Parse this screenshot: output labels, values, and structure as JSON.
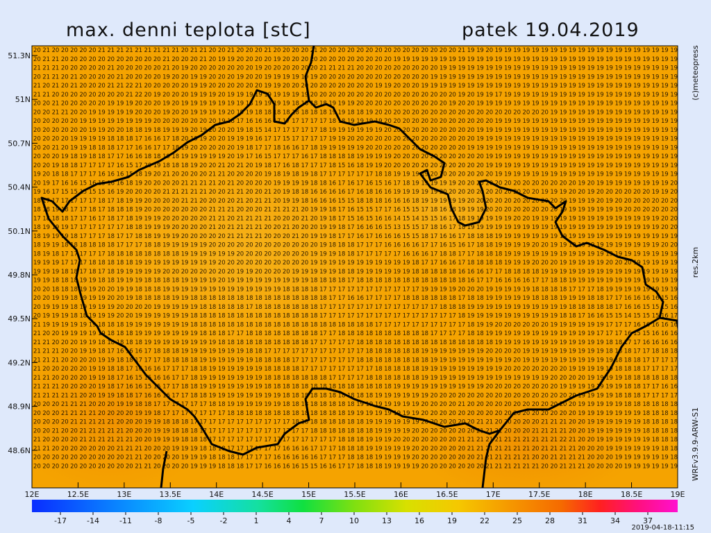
{
  "map": {
    "title": "max. denni teplota [stC]",
    "date": "patek 19.04.2019",
    "lat_labels": [
      "51.3N",
      "51N",
      "50.7N",
      "50.4N",
      "50.1N",
      "49.8N",
      "49.5N",
      "49.2N",
      "48.9N",
      "48.6N"
    ],
    "lon_labels": [
      "12E",
      "12.5E",
      "13E",
      "13.5E",
      "14E",
      "14.5E",
      "15E",
      "15.5E",
      "16E",
      "16.5E",
      "17E",
      "17.5E",
      "18E",
      "18.5E",
      "19E"
    ],
    "colorbar_ticks": [
      -17,
      -14,
      -11,
      -8,
      -5,
      -2,
      1,
      4,
      7,
      10,
      13,
      16,
      19,
      22,
      25,
      28,
      31,
      34,
      37
    ],
    "copyright": "(c)meteopress",
    "resolution": "res.2km",
    "model": "WRFv3.9.9-ARW-S1",
    "run": "2019-04-18-11:15",
    "grid_rows": [
      "20 21 20 20 20 20 20 21 21 21 21 21 21 21 21 21 20 21 21 20 20 21 20 20 20 21 20 20 20 20 21 20 20 20 20 20 20 20 20 20 20 20 20 20 20 20 21 19 19 20 19 19 19 19 19 19 19 19 19 19 19 19 19 19 19 19 19 19 19 19",
      "20 21 21 20 20 20 20 20 20 20 20 20 20 20 21 20 20 20 21 20 19 19 20 20 20 20 19 20 20 20 20 20 20 20 20 20 20 20 20 19 19 19 19 19 19 19 19 19 19 19 19 19 19 19 19 19 19 19 19 19 19 19 19 19 19 19 19 19 19 19",
      "21 21 21 20 20 20 20 20 21 20 20 20 20 20 21 20 19 20 20 20 20 20 20 20 19 20 20 20 20 20 20 21 21 21 21 20 20 20 20 20 20 20 20 20 19 19 19 19 19 19 19 19 19 19 19 19 19 19 19 19 19 19 19 19 19 19 19 19 19 19",
      "20 21 21 20 21 20 20 20 20 21 20 20 20 20 19 20 20 19 19 20 20 20 19 20 20 19 19 19 19 19 19 20 20 20 20 20 20 20 20 20 20 20 20 19 19 19 19 19 19 19 19 19 19 19 19 19 19 19 19 19 19 19 19 19 19 19 19 19 19 19",
      "21 20 21 20 21 20 20 20 21 21 22 21 20 20 20 20 20 19 19 20 20 20 20 20 20 19 19 20 20 20 20 20 20 20 20 20 20 19 19 20 20 20 19 19 19 19 19 19 19 19 19 19 19 19 19 19 19 19 19 19 19 19 19 19 19 19 19 19 19 19",
      "21 21 20 20 20 20 20 20 20 20 21 22 20 19 20 20 20 19 19 19 20 19 19 19 19 19 19 19 19 19 20 20 20 20 20 20 20 20 20 20 20 20 20 20 20 20 19 20 19 19 17 19 19 19 19 19 19 19 19 19 19 19 19 19 19 19 19 19 19 19",
      "20 20 21 20 20 20 20 20 19 19 19 20 20 20 19 20 19 19 19 19 19 19 19 18 19 19 19 19 18 18 18 18 19 19 19 20 20 20 20 20 20 20 20 20 20 19 20 20 19 19 19 19 19 19 19 19 19 19 19 19 19 19 19 19 19 19 19 19 19 19",
      "20 20 21 21 20 20 19 19 19 19 19 20 20 20 19 20 20 19 19 19 19 20 19 19 18 18 18 18 18 18 18 18 19 19 18 18 19 20 20 20 20 20 20 20 20 20 20 20 20 20 20 20 20 20 20 20 19 19 19 19 19 19 19 19 19 19 19 19 19 19",
      "20 20 20 20 20 19 19 19 19 19 19 19 19 20 20 20 20 20 20 20 19 18 17 16 16 16 17 17 17 17 17 17 18 18 19 19 19 19 20 20 20 20 20 20 20 20 20 20 20 20 19 19 19 19 19 19 19 19 19 19 19 19 19 19 19 19 19 19 19 19",
      "20 20 20 20 20 20 19 19 20 20 18 18 19 18 19 19 19 20 19 20 20 20 19 18 15 14 17 17 17 17 17 18 19 19 19 19 19 19 20 20 20 20 20 20 20 20 20 20 19 19 19 19 19 19 19 19 19 19 19 19 19 19 19 19 19 19 19 19 19 19",
      "20 20 20 20 19 19 19 19 18 18 18 17 16 16 17 18 20 19 19 20 20 19 19 19 16 17 17 15 17 17 17 17 19 19 20 20 20 20 20 20 20 20 20 20 20 20 20 20 19 19 19 19 19 19 19 19 19 19 19 19 19 19 19 19 19 19 19 19 19 19",
      "20 20 21 20 19 19 18 18 18 17 17 16 16 17 17 18 19 20 20 20 20 20 19 18 17 17 18 16 16 17 18 19 19 19 19 19 20 20 20 20 20 20 20 20 20 20 20 19 19 19 19 19 19 19 19 19 19 19 19 19 19 19 19 19 19 19 19 19 19 19",
      "20 20 20 19 18 19 18 18 17 17 16 16 18 18 19 18 19 19 19 19 19 20 19 17 16 15 17 17 17 16 17 18 18 18 18 19 19 19 19 20 20 20 20 20 20 20 20 20 20 19 19 19 19 19 19 19 19 19 19 19 19 19 19 19 19 19 19 19 19 19",
      "20 20 19 18 18 17 17 17 17 16 15 17 20 19 18 18 18 19 20 20 21 20 21 20 19 18 17 16 18 17 17 17 18 15 16 18 19 19 20 20 20 20 20 20 20 20 20 20 20 19 19 19 19 19 19 19 19 19 19 19 19 19 19 19 19 19 19 19 19 19",
      "19 20 18 18 17 17 17 16 16 16 15 18 19 20 21 20 20 20 20 21 21 20 20 20 20 19 18 19 18 19 18 17 17 17 17 17 17 18 18 19 19 19 19 20 20 20 20 20 20 20 19 19 19 19 19 19 19 19 19 19 19 19 19 19 19 19 19 19 19 19",
      "20 19 17 16 16 15 16 15 16 16 18 19 20 20 20 20 21 21 21 21 20 21 20 20 20 20 19 19 19 19 18 18 16 17 16 17 16 15 16 17 18 19 19 19 19 19 20 20 20 20 20 20 20 20 20 20 20 20 20 19 20 19 19 19 19 19 19 19 19 20",
      "19 16 17 15 15 15 15 15 16 19 20 20 20 20 21 21 21 21 21 20 20 21 21 20 20 21 20 19 18 18 16 16 16 16 17 16 18 16 16 19 19 19 19 19 20 20 20 20 20 20 20 20 20 20 20 19 19 19 20 20 19 20 20 20 20 20 20 19 19 20",
      "18 17 17 17 17 17 17 18 17 18 19 19 20 20 20 20 21 21 20 20 20 20 21 20 21 21 20 19 19 18 16 16 16 15 15 18 18 18 16 16 16 18 19 19 19 19 19 20 20 20 20 20 20 20 20 20 20 20 19 19 19 20 19 20 20 20 20 20 20 20",
      "18 18 19 18 17 17 18 17 18 18 18 19 20 20 20 20 20 20 20 21 21 21 20 20 20 21 21 21 21 20 19 19 18 17 16 15 15 17 17 16 15 15 17 18 16 18 19 19 19 20 20 20 20 20 20 20 20 19 19 19 19 19 19 19 20 20 20 20 20 20",
      "17 18 18 18 17 17 16 17 18 17 18 19 19 19 20 20 20 20 20 21 21 20 21 21 21 21 20 20 20 21 20 19 18 17 15 16 15 16 16 14 15 14 15 15 16 17 18 19 19 19 19 19 20 20 19 19 19 19 19 19 19 19 19 19 19 19 19 19 20 20",
      "18 19 19 19 17 17 17 17 17 17 18 18 19 19 19 20 20 20 20 21 20 21 21 21 21 20 20 21 20 20 20 19 19 18 17 16 16 16 15 13 15 15 17 18 16 17 18 19 19 19 19 19 19 19 19 19 19 19 19 19 19 19 19 19 19 19 19 19 20 20",
      "18 19 19 19 18 17 17 17 18 17 17 18 18 19 19 19 20 20 20 20 20 21 21 21 21 20 20 20 21 20 19 19 18 17 17 16 17 16 16 16 15 15 18 17 16 16 17 18 18 18 19 19 19 19 19 19 19 19 19 19 19 19 19 19 19 19 19 19 19 19",
      "18 19 19 18 18 18 18 18 18 17 17 17 18 18 19 19 19 19 19 20 20 20 20 20 20 20 20 20 20 20 20 19 18 18 18 17 17 17 16 16 16 16 17 17 16 15 16 17 18 18 19 19 19 19 20 20 19 19 19 19 19 19 19 19 19 19 19 19 20 20",
      "18 19 18 17 17 17 17 17 18 18 18 18 18 18 18 18 19 19 19 19 19 19 20 20 20 20 20 20 20 20 19 19 19 18 18 17 17 17 17 17 16 16 16 17 18 18 17 17 18 18 18 19 19 19 19 19 19 19 19 19 19 19 19 19 19 19 19 19 19 19",
      "19 19 19 17 17 17 18 18 18 18 18 19 19 19 19 19 19 19 19 19 20 20 20 20 20 20 20 20 20 20 19 19 19 19 19 19 19 19 19 19 19 18 17 17 16 16 17 18 18 18 18 19 19 19 20 20 20 19 19 19 19 19 20 20 20 19 19 19 19 19",
      "19 19 19 18 18 17 18 17 18 19 19 19 19 19 20 20 20 20 20 20 20 20 19 19 20 20 20 20 19 19 19 19 19 18 18 19 19 19 19 19 19 18 18 18 18 18 16 16 16 17 17 18 18 18 18 19 19 19 19 19 19 19 19 19 19 19 19 19 19 19",
      "19 19 18 18 18 19 19 18 18 19 19 19 18 18 18 18 19 19 19 19 20 19 19 19 19 19 19 19 19 19 18 18 18 18 17 18 18 18 18 18 18 18 18 18 18 18 18 16 17 17 16 16 16 16 17 17 18 18 19 19 19 19 19 19 19 19 19 19 19 19",
      "20 20 18 18 18 19 19 20 20 19 19 18 18 18 19 19 19 19 19 19 19 19 19 19 19 19 19 18 18 18 18 17 17 17 17 17 17 17 17 17 17 17 19 19 19 19 20 20 20 19 19 19 19 19 18 18 18 18 17 17 17 18 19 19 19 19 19 19 19 19",
      "20 20 19 19 18 19 19 19 20 20 19 18 18 18 18 19 19 18 18 18 18 18 18 18 18 18 18 18 18 18 18 18 17 17 16 16 17 17 17 17 18 18 18 18 18 18 17 18 18 19 19 19 19 19 18 18 18 19 19 19 18 18 17 17 16 16 16 16 15 16",
      "20 19 19 19 18 19 19 19 19 20 20 20 20 19 19 19 19 19 18 18 18 18 18 17 18 18 18 18 18 18 18 17 17 17 17 17 17 17 17 17 17 17 17 17 18 18 18 19 19 19 19 19 19 19 19 19 19 19 18 18 18 18 18 17 16 16 15 15 15 16",
      "20 19 19 19 18 18 19 19 19 20 20 19 19 19 19 19 19 18 18 18 18 18 18 18 18 18 18 18 18 18 18 17 17 17 17 17 17 17 17 17 17 17 17 17 17 17 18 19 19 19 19 19 19 19 19 19 19 18 18 17 16 16 15 15 14 15 15 15 16 17",
      "21 19 19 19 19 19 19 18 18 18 19 19 19 19 19 19 19 18 18 18 18 18 18 18 18 18 18 18 18 18 18 18 18 18 18 18 18 17 17 17 17 17 17 17 17 17 17 18 19 19 20 20 20 20 20 20 19 19 19 19 19 19 17 17 17 16 16 16 16 16",
      "21 20 20 19 19 19 19 19 18 18 18 19 19 19 19 19 19 19 18 18 18 17 17 18 18 18 18 18 18 18 18 17 17 18 18 18 18 18 18 18 18 18 18 17 17 17 17 18 18 19 19 19 19 19 19 19 19 19 19 19 19 17 17 17 16 15 15 16 16 16",
      "21 21 20 20 20 19 19 18 18 18 18 18 19 19 19 19 19 19 19 19 18 18 18 18 18 18 18 18 18 18 17 17 17 17 17 18 18 18 18 18 18 18 18 18 18 18 18 18 18 18 19 19 19 19 19 19 19 19 19 19 19 19 18 18 17 17 16 16 16 16",
      "21 21 21 20 20 19 19 18 17 16 16 16 17 18 18 18 19 19 19 19 19 19 19 18 18 17 17 17 17 17 17 17 17 17 17 17 18 18 18 18 18 18 19 19 19 19 19 19 19 20 20 20 20 19 19 19 19 19 19 19 19 19 18 18 18 17 17 18 18 18",
      "21 21 21 20 20 20 20 19 19 18 18 17 17 17 18 18 18 18 19 19 19 19 19 19 18 18 18 18 17 17 17 17 17 17 17 18 18 18 18 18 18 18 18 19 19 19 19 19 19 19 19 19 20 19 19 19 19 19 19 19 19 19 19 18 18 18 17 17 17 17",
      "21 20 20 20 20 20 19 19 18 18 17 16 16 16 17 17 17 18 18 19 19 19 19 19 19 18 18 18 18 17 17 17 17 17 17 17 17 18 18 18 18 18 19 19 19 19 19 19 19 19 19 20 20 20 20 20 20 20 19 19 19 19 19 18 18 18 17 17 17 17",
      "21 21 20 20 20 20 19 19 18 17 16 15 15 16 16 17 17 18 19 19 19 19 19 19 19 18 18 18 18 18 18 18 17 17 17 17 18 18 18 18 18 18 19 19 19 19 19 19 19 19 19 19 19 19 19 19 20 20 20 20 19 19 19 19 18 18 18 18 18 18",
      "21 21 21 20 20 20 20 19 18 17 16 16 15 15 17 17 18 18 19 19 19 19 19 19 19 18 18 18 18 18 18 18 18 18 18 18 18 18 18 19 19 19 19 19 19 19 19 19 19 20 20 20 20 20 20 20 20 19 19 19 19 19 19 19 18 18 17 17 16 16",
      "21 21 21 21 21 20 20 19 19 18 18 17 16 16 16 17 17 18 18 19 19 19 19 19 19 19 19 18 18 18 18 18 18 18 18 18 18 19 19 19 19 19 19 20 20 20 20 20 20 20 20 20 20 20 20 20 20 20 20 19 19 19 19 18 18 18 17 17 17 17",
      "20 20 20 21 21 21 20 20 20 19 19 18 18 17 17 17 17 17 17 18 18 19 19 19 19 19 19 18 18 18 18 18 18 18 18 19 19 19 19 19 19 19 20 20 20 20 21 20 20 20 20 20 20 20 20 20 20 20 20 19 19 19 19 19 18 18 18 18 18 18",
      "20 20 20 21 21 21 21 20 20 20 20 19 19 18 17 17 17 17 17 17 17 18 18 18 18 18 18 18 18 18 18 18 18 18 19 19 19 19 19 19 19 19 20 20 20 20 20 20 20 20 20 20 20 20 20 20 20 20 20 19 19 19 19 19 19 19 18 18 18 18",
      "20 20 20 20 21 21 21 21 21 20 20 20 19 19 18 18 18 17 17 17 17 17 17 17 17 17 17 17 18 18 18 18 18 18 18 18 19 19 19 19 19 19 20 20 20 20 20 20 21 21 20 20 20 20 20 21 21 21 20 20 19 19 19 19 19 19 18 18 18 18",
      "20 20 21 20 20 21 21 21 21 21 20 20 20 19 19 18 18 18 17 17 17 17 17 17 17 17 17 17 17 17 18 18 18 18 18 18 18 19 19 19 19 20 20 20 20 20 20 20 21 21 21 20 20 20 21 21 21 21 20 20 19 19 19 19 19 19 18 18 18 18",
      "21 20 20 20 20 21 21 21 21 21 21 20 20 19 19 19 18 18 18 17 17 17 17 17 17 17 17 17 17 17 17 17 17 18 18 18 19 19 19 20 20 20 20 20 20 20 21 21 21 21 21 21 21 21 21 21 21 22 21 20 20 19 19 19 19 19 19 18 18 18",
      "21 21 20 20 20 20 20 20 20 21 21 21 20 20 20 19 19 19 18 18 18 17 17 17 17 17 17 16 16 16 17 17 17 18 18 18 19 19 19 19 19 20 20 20 20 20 20 21 21 21 21 21 21 21 20 21 21 21 21 20 20 20 19 19 19 19 19 19 18 18",
      "20 20 20 20 20 20 20 20 20 20 21 21 20 20 20 20 19 19 19 18 18 18 17 17 17 17 16 16 16 16 16 17 17 17 18 18 18 19 19 19 19 20 20 20 20 20 20 20 21 21 21 21 21 21 20 20 21 21 21 21 20 20 20 19 19 19 19 19 19 18",
      "20 20 20 20 20 20 20 20 20 20 20 21 21 20 20 20 20 19 19 19 18 18 18 17 17 16 16 16 16 15 15 16 16 17 17 18 18 18 19 19 19 19 20 20 20 20 20 20 20 21 21 21 21 21 21 20 20 21 21 21 20 20 20 20 19 19 19 19 19 19"
    ]
  }
}
